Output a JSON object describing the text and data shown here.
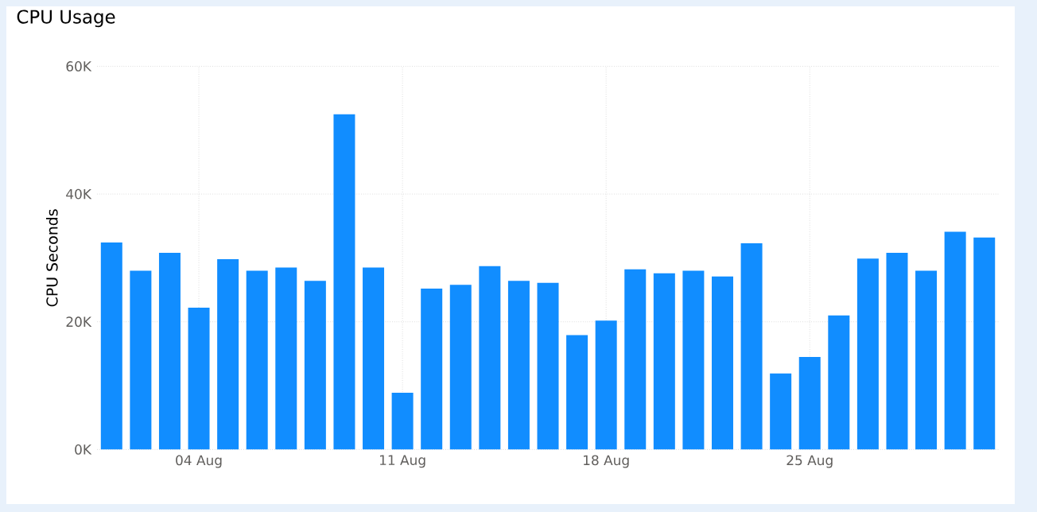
{
  "chart_data": {
    "type": "bar",
    "title": "CPU Usage",
    "ylabel": "CPU Seconds",
    "categories": [
      null,
      null,
      null,
      "04 Aug",
      null,
      null,
      null,
      null,
      null,
      null,
      "11 Aug",
      null,
      null,
      null,
      null,
      null,
      null,
      "18 Aug",
      null,
      null,
      null,
      null,
      null,
      null,
      "25 Aug",
      null,
      null,
      null,
      null,
      null,
      null
    ],
    "values": [
      32.4,
      28.0,
      30.8,
      22.2,
      29.8,
      28.0,
      28.5,
      26.4,
      52.5,
      28.5,
      8.9,
      25.2,
      25.8,
      28.7,
      26.4,
      26.1,
      17.9,
      20.2,
      28.2,
      27.6,
      28.0,
      27.1,
      32.3,
      11.9,
      14.5,
      21.0,
      29.9,
      30.8,
      28.0,
      34.1,
      33.2
    ],
    "color": "#118dff",
    "ylim": [
      0,
      60
    ],
    "yticks": [
      {
        "value": 0,
        "label": "0K"
      },
      {
        "value": 20,
        "label": "20K"
      },
      {
        "value": 40,
        "label": "40K"
      },
      {
        "value": 60,
        "label": "60K"
      }
    ],
    "grid": true
  }
}
